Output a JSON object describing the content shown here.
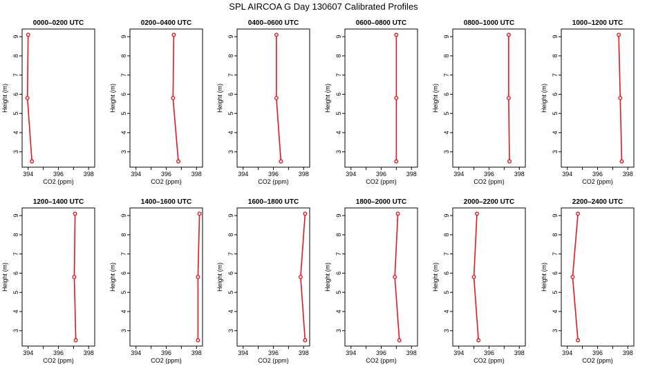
{
  "title": "SPL AIRCOA G  Day 130607  Calibrated Profiles",
  "colors": {
    "series": "#e8141b",
    "axis": "#000000",
    "background": "#ffffff"
  },
  "chart_data": {
    "type": "line",
    "layout": "small multiples, 2 rows x 6 columns",
    "xlabel": "CO2 (ppm)",
    "ylabel": "Height (m)",
    "xlim": [
      393.6,
      398.4
    ],
    "ylim": [
      2.2,
      9.4
    ],
    "xticks": [
      394,
      396,
      398
    ],
    "yticks": [
      3,
      4,
      5,
      6,
      7,
      8,
      9
    ],
    "grid": false,
    "panels": [
      {
        "title": "0000–0200 UTC",
        "points": [
          {
            "x": 394.0,
            "y": 9.1
          },
          {
            "x": 393.95,
            "y": 5.8
          },
          {
            "x": 394.25,
            "y": 2.5
          }
        ]
      },
      {
        "title": "0200–0400 UTC",
        "points": [
          {
            "x": 396.5,
            "y": 9.1
          },
          {
            "x": 396.45,
            "y": 5.8
          },
          {
            "x": 396.8,
            "y": 2.5
          }
        ]
      },
      {
        "title": "0400–0600 UTC",
        "points": [
          {
            "x": 396.2,
            "y": 9.1
          },
          {
            "x": 396.2,
            "y": 5.8
          },
          {
            "x": 396.5,
            "y": 2.5
          }
        ]
      },
      {
        "title": "0600–0800 UTC",
        "points": [
          {
            "x": 397.0,
            "y": 9.1
          },
          {
            "x": 397.0,
            "y": 5.8
          },
          {
            "x": 397.0,
            "y": 2.5
          }
        ]
      },
      {
        "title": "0800–1000 UTC",
        "points": [
          {
            "x": 397.3,
            "y": 9.1
          },
          {
            "x": 397.3,
            "y": 5.8
          },
          {
            "x": 397.35,
            "y": 2.5
          }
        ]
      },
      {
        "title": "1000–1200 UTC",
        "points": [
          {
            "x": 397.4,
            "y": 9.1
          },
          {
            "x": 397.5,
            "y": 5.8
          },
          {
            "x": 397.6,
            "y": 2.5
          }
        ]
      },
      {
        "title": "1200–1400 UTC",
        "points": [
          {
            "x": 397.1,
            "y": 9.1
          },
          {
            "x": 397.05,
            "y": 5.8
          },
          {
            "x": 397.15,
            "y": 2.5
          }
        ]
      },
      {
        "title": "1400–1600 UTC",
        "points": [
          {
            "x": 398.2,
            "y": 9.1
          },
          {
            "x": 398.1,
            "y": 5.8
          },
          {
            "x": 398.1,
            "y": 2.5
          }
        ]
      },
      {
        "title": "1600–1800 UTC",
        "points": [
          {
            "x": 398.1,
            "y": 9.1
          },
          {
            "x": 397.8,
            "y": 5.8
          },
          {
            "x": 398.1,
            "y": 2.5
          }
        ]
      },
      {
        "title": "1800–2000 UTC",
        "points": [
          {
            "x": 397.1,
            "y": 9.1
          },
          {
            "x": 396.9,
            "y": 5.8
          },
          {
            "x": 397.2,
            "y": 2.5
          }
        ]
      },
      {
        "title": "2000–2200 UTC",
        "points": [
          {
            "x": 395.2,
            "y": 9.1
          },
          {
            "x": 395.0,
            "y": 5.8
          },
          {
            "x": 395.3,
            "y": 2.5
          }
        ]
      },
      {
        "title": "2200–2400 UTC",
        "points": [
          {
            "x": 394.7,
            "y": 9.1
          },
          {
            "x": 394.35,
            "y": 5.8
          },
          {
            "x": 394.7,
            "y": 2.5
          }
        ]
      }
    ]
  }
}
